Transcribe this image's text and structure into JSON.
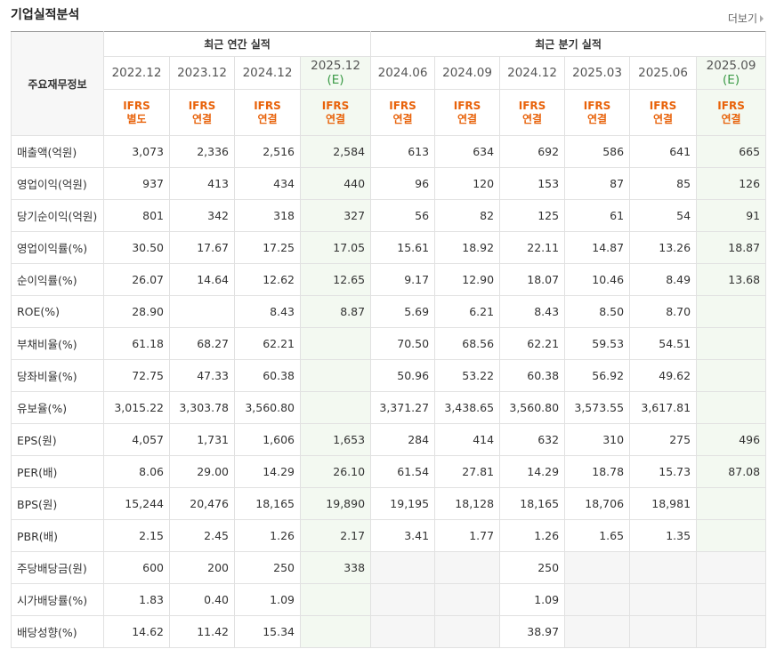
{
  "header": {
    "title": "기업실적분석",
    "more": "더보기"
  },
  "table": {
    "corner": "주요재무정보",
    "groups": [
      {
        "label": "최근 연간 실적",
        "columns": [
          {
            "date": "2022.12",
            "ifrs": "IFRS",
            "basis": "별도"
          },
          {
            "date": "2023.12",
            "ifrs": "IFRS",
            "basis": "연결"
          },
          {
            "date": "2024.12",
            "ifrs": "IFRS",
            "basis": "연결"
          },
          {
            "date": "2025.12",
            "estimate": "(E)",
            "ifrs": "IFRS",
            "basis": "연결"
          }
        ]
      },
      {
        "label": "최근 분기 실적",
        "columns": [
          {
            "date": "2024.06",
            "ifrs": "IFRS",
            "basis": "연결"
          },
          {
            "date": "2024.09",
            "ifrs": "IFRS",
            "basis": "연결"
          },
          {
            "date": "2024.12",
            "ifrs": "IFRS",
            "basis": "연결"
          },
          {
            "date": "2025.03",
            "ifrs": "IFRS",
            "basis": "연결"
          },
          {
            "date": "2025.06",
            "ifrs": "IFRS",
            "basis": "연결"
          },
          {
            "date": "2025.09",
            "estimate": "(E)",
            "ifrs": "IFRS",
            "basis": "연결"
          }
        ]
      }
    ],
    "sections": [
      [
        {
          "label": "매출액(억원)",
          "values": [
            "3,073",
            "2,336",
            "2,516",
            "2,584",
            "613",
            "634",
            "692",
            "586",
            "641",
            "665"
          ]
        },
        {
          "label": "영업이익(억원)",
          "values": [
            "937",
            "413",
            "434",
            "440",
            "96",
            "120",
            "153",
            "87",
            "85",
            "126"
          ]
        },
        {
          "label": "당기순이익(억원)",
          "values": [
            "801",
            "342",
            "318",
            "327",
            "56",
            "82",
            "125",
            "61",
            "54",
            "91"
          ]
        }
      ],
      [
        {
          "label": "영업이익률(%)",
          "values": [
            "30.50",
            "17.67",
            "17.25",
            "17.05",
            "15.61",
            "18.92",
            "22.11",
            "14.87",
            "13.26",
            "18.87"
          ]
        },
        {
          "label": "순이익률(%)",
          "values": [
            "26.07",
            "14.64",
            "12.62",
            "12.65",
            "9.17",
            "12.90",
            "18.07",
            "10.46",
            "8.49",
            "13.68"
          ]
        },
        {
          "label": "ROE(%)",
          "values": [
            "28.90",
            null,
            "8.43",
            "8.87",
            "5.69",
            "6.21",
            "8.43",
            "8.50",
            "8.70",
            null
          ]
        }
      ],
      [
        {
          "label": "부채비율(%)",
          "values": [
            "61.18",
            "68.27",
            "62.21",
            null,
            "70.50",
            "68.56",
            "62.21",
            "59.53",
            "54.51",
            null
          ]
        },
        {
          "label": "당좌비율(%)",
          "values": [
            "72.75",
            "47.33",
            "60.38",
            null,
            "50.96",
            "53.22",
            "60.38",
            "56.92",
            "49.62",
            null
          ]
        },
        {
          "label": "유보율(%)",
          "values": [
            "3,015.22",
            "3,303.78",
            "3,560.80",
            null,
            "3,371.27",
            "3,438.65",
            "3,560.80",
            "3,573.55",
            "3,617.81",
            null
          ]
        }
      ],
      [
        {
          "label": "EPS(원)",
          "values": [
            "4,057",
            "1,731",
            "1,606",
            "1,653",
            "284",
            "414",
            "632",
            "310",
            "275",
            "496"
          ]
        },
        {
          "label": "PER(배)",
          "values": [
            "8.06",
            "29.00",
            "14.29",
            "26.10",
            "61.54",
            "27.81",
            "14.29",
            "18.78",
            "15.73",
            "87.08"
          ]
        },
        {
          "label": "BPS(원)",
          "values": [
            "15,244",
            "20,476",
            "18,165",
            "19,890",
            "19,195",
            "18,128",
            "18,165",
            "18,706",
            "18,981",
            null
          ]
        },
        {
          "label": "PBR(배)",
          "values": [
            "2.15",
            "2.45",
            "1.26",
            "2.17",
            "3.41",
            "1.77",
            "1.26",
            "1.65",
            "1.35",
            null
          ]
        }
      ],
      [
        {
          "label": "주당배당금(원)",
          "values": [
            "600",
            "200",
            "250",
            "338",
            null,
            null,
            "250",
            null,
            null,
            null
          ]
        },
        {
          "label": "시가배당률(%)",
          "values": [
            "1.83",
            "0.40",
            "1.09",
            null,
            null,
            null,
            "1.09",
            null,
            null,
            null
          ]
        },
        {
          "label": "배당성향(%)",
          "values": [
            "14.62",
            "11.42",
            "15.34",
            null,
            null,
            null,
            "38.97",
            null,
            null,
            null
          ]
        }
      ]
    ]
  }
}
